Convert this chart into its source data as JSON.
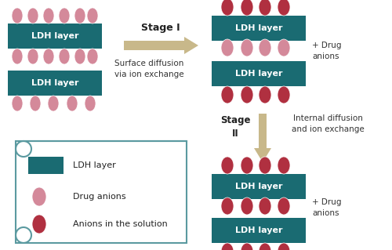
{
  "ldh_color": "#1a6b72",
  "arrow_color": "#c8b88a",
  "light_anion": "#d4899a",
  "dark_anion": "#b03040",
  "legend_border": "#5b9aa0",
  "bg": "#ffffff",
  "ldh_label": "LDH layer",
  "stage1_label": "Stage I",
  "stage1_sub": "Surface diffusion\nvia ion exchange",
  "stage2_label": "Stage\nII",
  "stage2_sub": "Internal diffusion\nand ion exchange",
  "plus_drug": "+ Drug\nanions",
  "legend_ldh": "LDH layer",
  "legend_drug": "Drug anions",
  "legend_anion": "Anions in the solution"
}
